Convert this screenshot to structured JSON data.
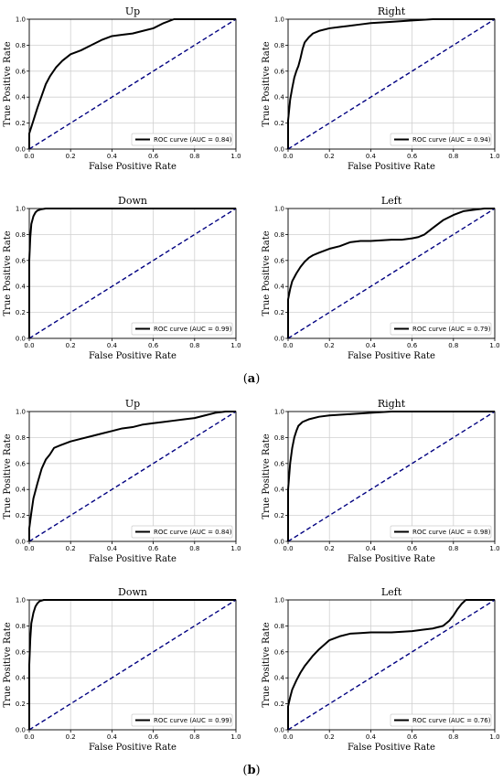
{
  "figure": {
    "captions": [
      {
        "open": "(",
        "letter": "a",
        "close": ")"
      },
      {
        "open": "(",
        "letter": "b",
        "close": ")"
      }
    ]
  },
  "chart_data": [
    {
      "type": "line",
      "group": "a",
      "title": "Up",
      "xlabel": "False Positive Rate",
      "ylabel": "True Positive Rate",
      "xlim": [
        0,
        1
      ],
      "ylim": [
        0,
        1
      ],
      "grid": true,
      "xticks": [
        "0.0",
        "0.2",
        "0.4",
        "0.6",
        "0.8",
        "1.0"
      ],
      "yticks": [
        "0.0",
        "0.2",
        "0.4",
        "0.6",
        "0.8",
        "1.0"
      ],
      "legend": {
        "location": "lower-right",
        "entries": [
          "ROC curve (AUC = 0.84)"
        ]
      },
      "series": [
        {
          "style": "solid",
          "color": "#000000",
          "x": [
            0,
            0,
            0.02,
            0.04,
            0.06,
            0.08,
            0.1,
            0.13,
            0.16,
            0.2,
            0.25,
            0.3,
            0.35,
            0.4,
            0.45,
            0.5,
            0.55,
            0.6,
            0.65,
            0.7,
            0.75,
            0.8,
            0.85,
            0.9,
            0.95,
            1.0
          ],
          "y": [
            0,
            0.12,
            0.22,
            0.32,
            0.41,
            0.5,
            0.56,
            0.63,
            0.68,
            0.73,
            0.76,
            0.8,
            0.84,
            0.87,
            0.88,
            0.89,
            0.91,
            0.93,
            0.97,
            1.0,
            1.0,
            1.0,
            1.0,
            1.0,
            1.0,
            1.0
          ]
        },
        {
          "style": "dashed",
          "color": "#000080",
          "x": [
            0,
            1
          ],
          "y": [
            0,
            1
          ]
        }
      ]
    },
    {
      "type": "line",
      "group": "a",
      "title": "Right",
      "xlabel": "False Positive Rate",
      "ylabel": "True Positive Rate",
      "xlim": [
        0,
        1
      ],
      "ylim": [
        0,
        1
      ],
      "grid": true,
      "xticks": [
        "0.0",
        "0.2",
        "0.4",
        "0.6",
        "0.8",
        "1.0"
      ],
      "yticks": [
        "0.0",
        "0.2",
        "0.4",
        "0.6",
        "0.8",
        "1.0"
      ],
      "legend": {
        "location": "lower-right",
        "entries": [
          "ROC curve (AUC = 0.94)"
        ]
      },
      "series": [
        {
          "style": "solid",
          "color": "#000000",
          "x": [
            0,
            0,
            0.01,
            0.02,
            0.03,
            0.04,
            0.05,
            0.06,
            0.07,
            0.08,
            0.1,
            0.12,
            0.15,
            0.2,
            0.25,
            0.3,
            0.35,
            0.4,
            0.5,
            0.6,
            0.7,
            0.8,
            0.9,
            1.0
          ],
          "y": [
            0,
            0.22,
            0.38,
            0.47,
            0.55,
            0.6,
            0.64,
            0.7,
            0.77,
            0.82,
            0.86,
            0.89,
            0.91,
            0.93,
            0.94,
            0.95,
            0.96,
            0.97,
            0.98,
            0.99,
            1.0,
            1.0,
            1.0,
            1.0
          ]
        },
        {
          "style": "dashed",
          "color": "#000080",
          "x": [
            0,
            1
          ],
          "y": [
            0,
            1
          ]
        }
      ]
    },
    {
      "type": "line",
      "group": "a",
      "title": "Down",
      "xlabel": "False Positive Rate",
      "ylabel": "True Positive Rate",
      "xlim": [
        0,
        1
      ],
      "ylim": [
        0,
        1
      ],
      "grid": true,
      "xticks": [
        "0.0",
        "0.2",
        "0.4",
        "0.6",
        "0.8",
        "1.0"
      ],
      "yticks": [
        "0.0",
        "0.2",
        "0.4",
        "0.6",
        "0.8",
        "1.0"
      ],
      "legend": {
        "location": "lower-right",
        "entries": [
          "ROC curve (AUC = 0.99)"
        ]
      },
      "series": [
        {
          "style": "solid",
          "color": "#000000",
          "x": [
            0,
            0,
            0.005,
            0.01,
            0.02,
            0.03,
            0.04,
            0.06,
            0.08,
            0.1,
            0.2,
            0.4,
            0.6,
            0.8,
            1.0
          ],
          "y": [
            0,
            0.6,
            0.78,
            0.88,
            0.94,
            0.97,
            0.985,
            0.995,
            1.0,
            1.0,
            1.0,
            1.0,
            1.0,
            1.0,
            1.0
          ]
        },
        {
          "style": "dashed",
          "color": "#000080",
          "x": [
            0,
            1
          ],
          "y": [
            0,
            1
          ]
        }
      ]
    },
    {
      "type": "line",
      "group": "a",
      "title": "Left",
      "xlabel": "False Positive Rate",
      "ylabel": "True Positive Rate",
      "xlim": [
        0,
        1
      ],
      "ylim": [
        0,
        1
      ],
      "grid": true,
      "xticks": [
        "0.0",
        "0.2",
        "0.4",
        "0.6",
        "0.8",
        "1.0"
      ],
      "yticks": [
        "0.0",
        "0.2",
        "0.4",
        "0.6",
        "0.8",
        "1.0"
      ],
      "legend": {
        "location": "lower-right",
        "entries": [
          "ROC curve (AUC = 0.79)"
        ]
      },
      "series": [
        {
          "style": "solid",
          "color": "#000000",
          "x": [
            0,
            0,
            0.01,
            0.02,
            0.04,
            0.06,
            0.08,
            0.1,
            0.12,
            0.15,
            0.2,
            0.25,
            0.3,
            0.35,
            0.4,
            0.5,
            0.55,
            0.6,
            0.63,
            0.66,
            0.7,
            0.75,
            0.8,
            0.85,
            0.9,
            0.95,
            1.0
          ],
          "y": [
            0,
            0.3,
            0.38,
            0.44,
            0.5,
            0.55,
            0.59,
            0.62,
            0.64,
            0.66,
            0.69,
            0.71,
            0.74,
            0.75,
            0.75,
            0.76,
            0.76,
            0.77,
            0.78,
            0.8,
            0.85,
            0.91,
            0.95,
            0.98,
            0.99,
            1.0,
            1.0
          ]
        },
        {
          "style": "dashed",
          "color": "#000080",
          "x": [
            0,
            1
          ],
          "y": [
            0,
            1
          ]
        }
      ]
    },
    {
      "type": "line",
      "group": "b",
      "title": "Up",
      "xlabel": "False Positive Rate",
      "ylabel": "True Positive Rate",
      "xlim": [
        0,
        1
      ],
      "ylim": [
        0,
        1
      ],
      "grid": true,
      "xticks": [
        "0.0",
        "0.2",
        "0.4",
        "0.6",
        "0.8",
        "1.0"
      ],
      "yticks": [
        "0.0",
        "0.2",
        "0.4",
        "0.6",
        "0.8",
        "1.0"
      ],
      "legend": {
        "location": "lower-right",
        "entries": [
          "ROC curve (AUC = 0.84)"
        ]
      },
      "series": [
        {
          "style": "solid",
          "color": "#000000",
          "x": [
            0,
            0,
            0.01,
            0.02,
            0.04,
            0.06,
            0.08,
            0.1,
            0.12,
            0.15,
            0.2,
            0.25,
            0.3,
            0.35,
            0.4,
            0.45,
            0.5,
            0.55,
            0.6,
            0.65,
            0.7,
            0.75,
            0.8,
            0.85,
            0.9,
            0.95,
            1.0
          ],
          "y": [
            0,
            0.1,
            0.22,
            0.33,
            0.45,
            0.56,
            0.63,
            0.67,
            0.72,
            0.74,
            0.77,
            0.79,
            0.81,
            0.83,
            0.85,
            0.87,
            0.88,
            0.9,
            0.91,
            0.92,
            0.93,
            0.94,
            0.95,
            0.97,
            0.99,
            1.0,
            1.0
          ]
        },
        {
          "style": "dashed",
          "color": "#000080",
          "x": [
            0,
            1
          ],
          "y": [
            0,
            1
          ]
        }
      ]
    },
    {
      "type": "line",
      "group": "b",
      "title": "Right",
      "xlabel": "False Positive Rate",
      "ylabel": "True Positive Rate",
      "xlim": [
        0,
        1
      ],
      "ylim": [
        0,
        1
      ],
      "grid": true,
      "xticks": [
        "0.0",
        "0.2",
        "0.4",
        "0.6",
        "0.8",
        "1.0"
      ],
      "yticks": [
        "0.0",
        "0.2",
        "0.4",
        "0.6",
        "0.8",
        "1.0"
      ],
      "legend": {
        "location": "lower-right",
        "entries": [
          "ROC curve (AUC = 0.98)"
        ]
      },
      "series": [
        {
          "style": "solid",
          "color": "#000000",
          "x": [
            0,
            0,
            0.01,
            0.02,
            0.03,
            0.04,
            0.05,
            0.07,
            0.1,
            0.15,
            0.2,
            0.3,
            0.4,
            0.5,
            0.6,
            0.8,
            1.0
          ],
          "y": [
            0,
            0.4,
            0.6,
            0.72,
            0.8,
            0.85,
            0.89,
            0.92,
            0.94,
            0.96,
            0.97,
            0.98,
            0.99,
            1.0,
            1.0,
            1.0,
            1.0
          ]
        },
        {
          "style": "dashed",
          "color": "#000080",
          "x": [
            0,
            1
          ],
          "y": [
            0,
            1
          ]
        }
      ]
    },
    {
      "type": "line",
      "group": "b",
      "title": "Down",
      "xlabel": "False Positive Rate",
      "ylabel": "True Positive Rate",
      "xlim": [
        0,
        1
      ],
      "ylim": [
        0,
        1
      ],
      "grid": true,
      "xticks": [
        "0.0",
        "0.2",
        "0.4",
        "0.6",
        "0.8",
        "1.0"
      ],
      "yticks": [
        "0.0",
        "0.2",
        "0.4",
        "0.6",
        "0.8",
        "1.0"
      ],
      "legend": {
        "location": "lower-right",
        "entries": [
          "ROC curve (AUC = 0.99)"
        ]
      },
      "series": [
        {
          "style": "solid",
          "color": "#000000",
          "x": [
            0,
            0,
            0.005,
            0.01,
            0.02,
            0.03,
            0.04,
            0.05,
            0.07,
            0.1,
            0.2,
            0.4,
            0.6,
            0.8,
            1.0
          ],
          "y": [
            0,
            0.5,
            0.7,
            0.82,
            0.9,
            0.95,
            0.975,
            0.99,
            1.0,
            1.0,
            1.0,
            1.0,
            1.0,
            1.0,
            1.0
          ]
        },
        {
          "style": "dashed",
          "color": "#000080",
          "x": [
            0,
            1
          ],
          "y": [
            0,
            1
          ]
        }
      ]
    },
    {
      "type": "line",
      "group": "b",
      "title": "Left",
      "xlabel": "False Positive Rate",
      "ylabel": "True Positive Rate",
      "xlim": [
        0,
        1
      ],
      "ylim": [
        0,
        1
      ],
      "grid": true,
      "xticks": [
        "0.0",
        "0.2",
        "0.4",
        "0.6",
        "0.8",
        "1.0"
      ],
      "yticks": [
        "0.0",
        "0.2",
        "0.4",
        "0.6",
        "0.8",
        "1.0"
      ],
      "legend": {
        "location": "lower-right",
        "entries": [
          "ROC curve (AUC = 0.76)"
        ]
      },
      "series": [
        {
          "style": "solid",
          "color": "#000000",
          "x": [
            0,
            0,
            0.01,
            0.02,
            0.04,
            0.06,
            0.08,
            0.1,
            0.12,
            0.15,
            0.2,
            0.25,
            0.3,
            0.35,
            0.4,
            0.5,
            0.6,
            0.65,
            0.7,
            0.75,
            0.78,
            0.8,
            0.82,
            0.84,
            0.86,
            0.9,
            1.0
          ],
          "y": [
            0,
            0.18,
            0.25,
            0.31,
            0.38,
            0.44,
            0.49,
            0.53,
            0.57,
            0.62,
            0.69,
            0.72,
            0.74,
            0.745,
            0.75,
            0.75,
            0.76,
            0.77,
            0.78,
            0.8,
            0.84,
            0.88,
            0.93,
            0.97,
            1.0,
            1.0,
            1.0
          ]
        },
        {
          "style": "dashed",
          "color": "#000080",
          "x": [
            0,
            1
          ],
          "y": [
            0,
            1
          ]
        }
      ]
    }
  ]
}
